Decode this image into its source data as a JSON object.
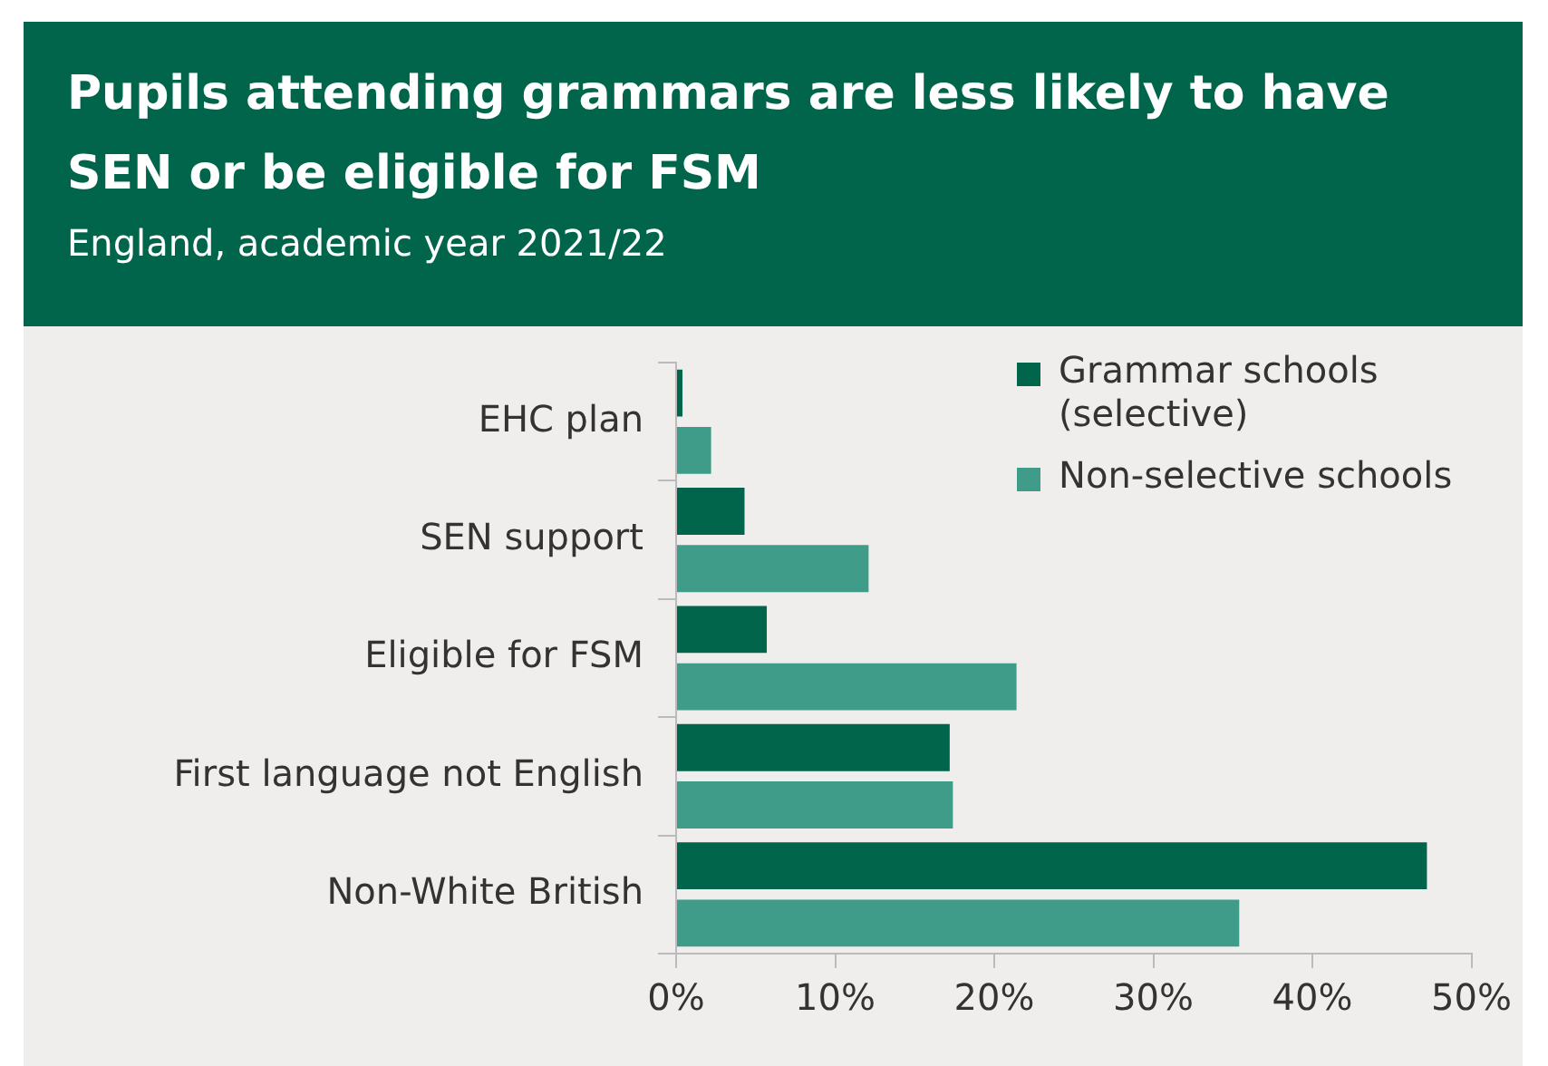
{
  "chart_data": {
    "type": "bar",
    "orientation": "horizontal",
    "title": "Pupils attending grammars are less likely to have SEN or be eligible for FSM",
    "subtitle": "England, academic year 2021/22",
    "categories": [
      "EHC plan",
      "SEN support",
      "Eligible for FSM",
      "First language not English",
      "Non-White British"
    ],
    "series": [
      {
        "name": "Grammar schools (selective)",
        "color": "#00654a",
        "values": [
          0.4,
          4.3,
          5.7,
          17.2,
          47.2
        ]
      },
      {
        "name": "Non-selective schools",
        "color": "#3f9c88",
        "values": [
          2.2,
          12.1,
          21.4,
          17.4,
          35.4
        ]
      }
    ],
    "xlim": [
      0,
      50
    ],
    "xticks": [
      {
        "value": 0,
        "label": "0%"
      },
      {
        "value": 10,
        "label": "10%"
      },
      {
        "value": 20,
        "label": "20%"
      },
      {
        "value": 30,
        "label": "30%"
      },
      {
        "value": 40,
        "label": "40%"
      },
      {
        "value": 50,
        "label": "50%"
      }
    ],
    "grid": false,
    "legend": "top right"
  }
}
